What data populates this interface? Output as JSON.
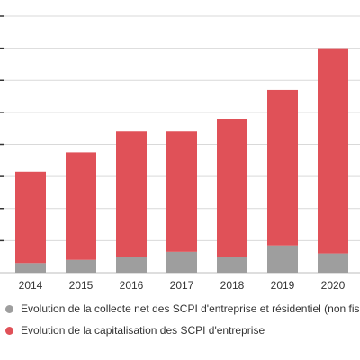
{
  "chart_data": {
    "type": "bar",
    "stacked": true,
    "categories": [
      "2014",
      "2015",
      "2016",
      "2017",
      "2018",
      "2019",
      "2020"
    ],
    "series": [
      {
        "name": "Evolution de la collecte net des SCPI d'entreprise et résidentiel (non fiscal)",
        "color": "#9e9e9e",
        "values": [
          0.3,
          0.4,
          0.5,
          0.65,
          0.5,
          0.85,
          0.6
        ]
      },
      {
        "name": "Evolution de la capitalisation des SCPI d'entreprise",
        "color": "#e05158",
        "values": [
          2.85,
          3.35,
          3.9,
          3.75,
          4.3,
          4.85,
          6.4
        ]
      }
    ],
    "ylim": [
      0,
      8
    ],
    "grid": true,
    "legend_position": "bottom"
  }
}
